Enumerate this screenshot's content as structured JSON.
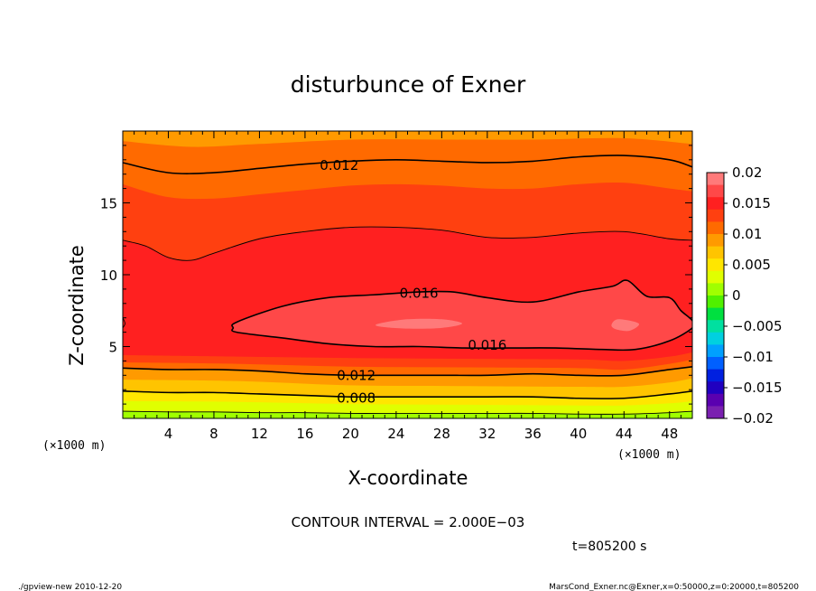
{
  "chart_data": {
    "type": "heatmap",
    "subtype": "filled-contour",
    "title": "disturbunce of Exner",
    "xlabel": "X-coordinate",
    "ylabel": "Z-coordinate",
    "x_unit": "(×1000 m)",
    "xlim": [
      0,
      50
    ],
    "ylim": [
      0,
      20
    ],
    "x_ticks": [
      4,
      8,
      12,
      16,
      20,
      24,
      28,
      32,
      36,
      40,
      44,
      48
    ],
    "y_ticks": [
      5,
      10,
      15
    ],
    "colorbar": {
      "ticks": [
        "0.02",
        "0.015",
        "0.01",
        "0.005",
        "0",
        "−0.005",
        "−0.01",
        "−0.015",
        "−0.02"
      ],
      "range": [
        -0.02,
        0.02
      ],
      "colors": [
        "#ff7a7a",
        "#ff4848",
        "#ff2020",
        "#ff4010",
        "#ff6a00",
        "#ff9a00",
        "#ffc400",
        "#ffe600",
        "#e0ff00",
        "#a0ff00",
        "#50f000",
        "#00e040",
        "#00e0a0",
        "#00d0e0",
        "#00a0ff",
        "#0060ff",
        "#0020e0",
        "#2000c0",
        "#5a00b0",
        "#7a20b0"
      ]
    },
    "contour_labels": [
      {
        "text": "0.012",
        "x": 19,
        "z": 17.6
      },
      {
        "text": "0.016",
        "x": 26,
        "z": 8.7
      },
      {
        "text": "0.016",
        "x": 32,
        "z": 5.1
      },
      {
        "text": "0.012",
        "x": 20.5,
        "z": 3.0
      },
      {
        "text": "0.008",
        "x": 20.5,
        "z": 1.4
      }
    ],
    "levels": [
      {
        "value": 0.0185,
        "color": "#ff7a7a",
        "points": [
          [
            22.5,
            6.6
          ],
          [
            25,
            6.9
          ],
          [
            28,
            6.9
          ],
          [
            29.8,
            6.6
          ],
          [
            28,
            6.3
          ],
          [
            25,
            6.25
          ],
          [
            22.5,
            6.4
          ]
        ]
      },
      {
        "value": 0.0185,
        "color": "#ff7a7a",
        "points": [
          [
            43.5,
            6.9
          ],
          [
            45.3,
            6.6
          ],
          [
            44.5,
            6.1
          ],
          [
            43.3,
            6.2
          ],
          [
            42.9,
            6.5
          ]
        ]
      },
      {
        "value": 0.016,
        "color": "#ff4848",
        "points": [
          [
            10,
            6.7
          ],
          [
            14,
            7.8
          ],
          [
            18,
            8.4
          ],
          [
            22,
            8.6
          ],
          [
            26,
            8.8
          ],
          [
            29,
            8.8
          ],
          [
            32,
            8.4
          ],
          [
            36,
            8.1
          ],
          [
            40,
            8.8
          ],
          [
            43,
            9.2
          ],
          [
            44.3,
            9.6
          ],
          [
            46,
            8.5
          ],
          [
            48,
            8.4
          ],
          [
            49,
            7.5
          ],
          [
            50,
            6.8
          ],
          [
            50,
            6.3
          ],
          [
            48,
            5.4
          ],
          [
            45,
            4.8
          ],
          [
            42,
            4.8
          ],
          [
            38,
            4.9
          ],
          [
            34,
            4.9
          ],
          [
            30,
            4.9
          ],
          [
            26,
            5.0
          ],
          [
            22,
            5.0
          ],
          [
            18,
            5.2
          ],
          [
            14,
            5.6
          ],
          [
            10,
            6.0
          ],
          [
            9.7,
            6.3
          ]
        ]
      }
    ],
    "isolines": [
      {
        "value": 0.012,
        "labeled": true,
        "points": [
          [
            0,
            17.8
          ],
          [
            4,
            17.1
          ],
          [
            8,
            17.1
          ],
          [
            12,
            17.4
          ],
          [
            16,
            17.7
          ],
          [
            20,
            17.9
          ],
          [
            24,
            18.0
          ],
          [
            28,
            17.9
          ],
          [
            32,
            17.8
          ],
          [
            36,
            17.9
          ],
          [
            40,
            18.2
          ],
          [
            44,
            18.3
          ],
          [
            48,
            18.0
          ],
          [
            50,
            17.5
          ]
        ]
      },
      {
        "value": 0.014,
        "labeled": false,
        "points": [
          [
            0,
            12.4
          ],
          [
            2,
            12.0
          ],
          [
            4,
            11.2
          ],
          [
            6,
            11.0
          ],
          [
            8,
            11.5
          ],
          [
            12,
            12.5
          ],
          [
            16,
            13.0
          ],
          [
            20,
            13.3
          ],
          [
            24,
            13.3
          ],
          [
            28,
            13.1
          ],
          [
            32,
            12.6
          ],
          [
            36,
            12.6
          ],
          [
            40,
            12.9
          ],
          [
            44,
            13.0
          ],
          [
            48,
            12.5
          ],
          [
            50,
            12.4
          ]
        ]
      },
      {
        "value": 0.014,
        "labeled": false,
        "points": [
          [
            0,
            7.0
          ],
          [
            0.2,
            6.6
          ],
          [
            0,
            6.3
          ]
        ]
      },
      {
        "value": 0.012,
        "labeled": true,
        "points": [
          [
            0,
            3.5
          ],
          [
            4,
            3.4
          ],
          [
            8,
            3.4
          ],
          [
            12,
            3.3
          ],
          [
            16,
            3.1
          ],
          [
            20,
            3.0
          ],
          [
            24,
            3.0
          ],
          [
            28,
            3.0
          ],
          [
            32,
            3.0
          ],
          [
            36,
            3.1
          ],
          [
            40,
            3.0
          ],
          [
            44,
            3.0
          ],
          [
            48,
            3.4
          ],
          [
            50,
            3.6
          ]
        ]
      },
      {
        "value": 0.008,
        "labeled": true,
        "points": [
          [
            0,
            1.9
          ],
          [
            4,
            1.8
          ],
          [
            8,
            1.8
          ],
          [
            12,
            1.7
          ],
          [
            16,
            1.6
          ],
          [
            20,
            1.5
          ],
          [
            24,
            1.5
          ],
          [
            28,
            1.5
          ],
          [
            32,
            1.5
          ],
          [
            36,
            1.5
          ],
          [
            40,
            1.4
          ],
          [
            44,
            1.4
          ],
          [
            48,
            1.7
          ],
          [
            50,
            1.9
          ]
        ]
      },
      {
        "value": 0.004,
        "labeled": false,
        "points": [
          [
            0,
            0.5
          ],
          [
            4,
            0.45
          ],
          [
            8,
            0.45
          ],
          [
            12,
            0.4
          ],
          [
            16,
            0.4
          ],
          [
            20,
            0.35
          ],
          [
            24,
            0.35
          ],
          [
            28,
            0.35
          ],
          [
            32,
            0.35
          ],
          [
            36,
            0.35
          ],
          [
            40,
            0.3
          ],
          [
            44,
            0.3
          ],
          [
            48,
            0.4
          ],
          [
            50,
            0.5
          ]
        ]
      }
    ],
    "bands": [
      {
        "color": "#ff9a00",
        "upper": [
          [
            0,
            20
          ],
          [
            50,
            20
          ]
        ]
      },
      {
        "color": "#ff6a00",
        "upper": [
          [
            0,
            19.3
          ],
          [
            6,
            18.9
          ],
          [
            12,
            19.1
          ],
          [
            20,
            19.4
          ],
          [
            28,
            19.4
          ],
          [
            36,
            19.4
          ],
          [
            44,
            19.5
          ],
          [
            50,
            19.1
          ]
        ]
      },
      {
        "color": "#ff4010",
        "upper": [
          [
            0,
            16.3
          ],
          [
            4,
            15.4
          ],
          [
            8,
            15.3
          ],
          [
            12,
            15.6
          ],
          [
            16,
            15.9
          ],
          [
            20,
            16.2
          ],
          [
            24,
            16.3
          ],
          [
            28,
            16.2
          ],
          [
            32,
            16.0
          ],
          [
            36,
            16.0
          ],
          [
            40,
            16.3
          ],
          [
            44,
            16.4
          ],
          [
            48,
            16.0
          ],
          [
            50,
            15.8
          ]
        ]
      },
      {
        "color": "#ff2020",
        "upper": [
          [
            0,
            12.4
          ],
          [
            2,
            12.0
          ],
          [
            4,
            11.2
          ],
          [
            6,
            11.0
          ],
          [
            8,
            11.5
          ],
          [
            12,
            12.5
          ],
          [
            16,
            13.0
          ],
          [
            20,
            13.3
          ],
          [
            24,
            13.3
          ],
          [
            28,
            13.1
          ],
          [
            32,
            12.6
          ],
          [
            36,
            12.6
          ],
          [
            40,
            12.9
          ],
          [
            44,
            13.0
          ],
          [
            48,
            12.5
          ],
          [
            50,
            12.4
          ]
        ]
      },
      {
        "color": "#ff4010",
        "upper": [
          [
            0,
            4.4
          ],
          [
            10,
            4.3
          ],
          [
            20,
            4.2
          ],
          [
            30,
            4.15
          ],
          [
            40,
            4.1
          ],
          [
            44,
            4.0
          ],
          [
            48,
            4.3
          ],
          [
            50,
            4.6
          ]
        ]
      },
      {
        "color": "#ff6a00",
        "upper": [
          [
            0,
            3.9
          ],
          [
            10,
            3.8
          ],
          [
            20,
            3.6
          ],
          [
            30,
            3.55
          ],
          [
            40,
            3.5
          ],
          [
            44,
            3.4
          ],
          [
            48,
            3.8
          ],
          [
            50,
            4.1
          ]
        ]
      },
      {
        "color": "#ff9a00",
        "upper": [
          [
            0,
            3.5
          ],
          [
            4,
            3.4
          ],
          [
            8,
            3.4
          ],
          [
            12,
            3.3
          ],
          [
            16,
            3.1
          ],
          [
            20,
            3.0
          ],
          [
            24,
            3.0
          ],
          [
            28,
            3.0
          ],
          [
            32,
            3.0
          ],
          [
            36,
            3.1
          ],
          [
            40,
            3.0
          ],
          [
            44,
            3.0
          ],
          [
            48,
            3.4
          ],
          [
            50,
            3.6
          ]
        ]
      },
      {
        "color": "#ffc400",
        "upper": [
          [
            0,
            2.7
          ],
          [
            10,
            2.6
          ],
          [
            20,
            2.3
          ],
          [
            30,
            2.25
          ],
          [
            40,
            2.2
          ],
          [
            44,
            2.2
          ],
          [
            48,
            2.5
          ],
          [
            50,
            2.8
          ]
        ]
      },
      {
        "color": "#ffe600",
        "upper": [
          [
            0,
            1.9
          ],
          [
            4,
            1.8
          ],
          [
            8,
            1.8
          ],
          [
            12,
            1.7
          ],
          [
            16,
            1.6
          ],
          [
            20,
            1.5
          ],
          [
            24,
            1.5
          ],
          [
            28,
            1.5
          ],
          [
            32,
            1.5
          ],
          [
            36,
            1.5
          ],
          [
            40,
            1.4
          ],
          [
            44,
            1.4
          ],
          [
            48,
            1.7
          ],
          [
            50,
            1.9
          ]
        ]
      },
      {
        "color": "#e0ff00",
        "upper": [
          [
            0,
            1.2
          ],
          [
            10,
            1.15
          ],
          [
            20,
            1.0
          ],
          [
            30,
            0.95
          ],
          [
            40,
            0.9
          ],
          [
            44,
            0.9
          ],
          [
            48,
            1.05
          ],
          [
            50,
            1.2
          ]
        ]
      },
      {
        "color": "#a0ff00",
        "upper": [
          [
            0,
            0.5
          ],
          [
            4,
            0.45
          ],
          [
            8,
            0.45
          ],
          [
            12,
            0.4
          ],
          [
            16,
            0.4
          ],
          [
            20,
            0.35
          ],
          [
            24,
            0.35
          ],
          [
            28,
            0.35
          ],
          [
            32,
            0.35
          ],
          [
            36,
            0.35
          ],
          [
            40,
            0.3
          ],
          [
            44,
            0.3
          ],
          [
            48,
            0.4
          ],
          [
            50,
            0.5
          ]
        ]
      }
    ]
  },
  "contour_interval": "CONTOUR INTERVAL = 2.000E−03",
  "time_label": "t=805200 s",
  "footer": {
    "left": "./gpview-new  2010-12-20",
    "right": "MarsCond_Exner.nc@Exner,x=0:50000,z=0:20000,t=805200"
  }
}
